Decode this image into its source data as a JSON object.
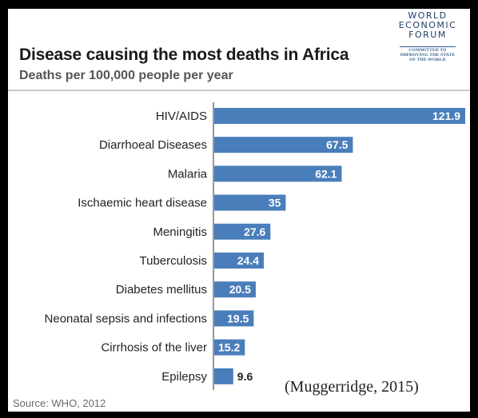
{
  "chart_data": {
    "type": "bar",
    "orientation": "horizontal",
    "title": "Disease causing the most deaths in Africa",
    "subtitle": "Deaths per 100,000 people per year",
    "categories": [
      "HIV/AIDS",
      "Diarrhoeal Diseases",
      "Malaria",
      "Ischaemic heart disease",
      "Meningitis",
      "Tuberculosis",
      "Diabetes mellitus",
      "Neonatal sepsis and infections",
      "Cirrhosis of the liver",
      "Epilepsy"
    ],
    "values": [
      121.9,
      67.5,
      62.1,
      35,
      27.6,
      24.4,
      20.5,
      19.5,
      15.2,
      9.6
    ],
    "value_labels": [
      "121.9",
      "67.5",
      "62.1",
      "35",
      "27.6",
      "24.4",
      "20.5",
      "19.5",
      "15.2",
      "9.6"
    ],
    "xlim": [
      0,
      121.9
    ],
    "bar_color": "#4a7ebb",
    "grid": false,
    "source": "Source: WHO, 2012"
  },
  "logo": {
    "lines": [
      "WORLD",
      "ECONOMIC",
      "FORUM"
    ],
    "tagline": [
      "COMMITTED TO",
      "IMPROVING THE STATE",
      "OF THE WORLD"
    ],
    "color": "#2d5a8c"
  },
  "citation": "(Muggerridge, 2015)"
}
